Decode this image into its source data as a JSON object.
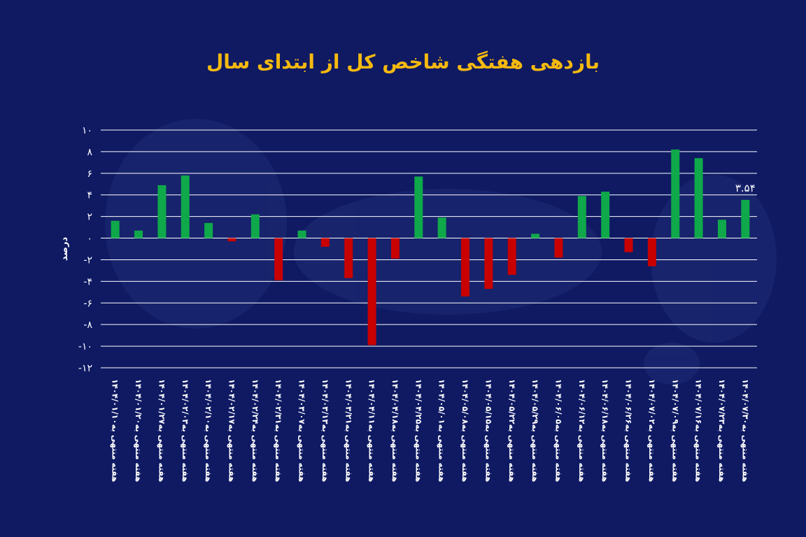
{
  "chart_data": {
    "type": "bar",
    "title": "بازدهی هفتگی شاخص کل از ابتدای سال",
    "xlabel": "",
    "ylabel": "درصد",
    "ylim": [
      -12,
      10
    ],
    "yticks": [
      10,
      8,
      6,
      4,
      2,
      0,
      -2,
      -4,
      -6,
      -8,
      -10,
      -12
    ],
    "ytick_labels": [
      "۱۰",
      "۸",
      "۶",
      "۴",
      "۲",
      "۰",
      "-۲",
      "-۴",
      "-۶",
      "-۸",
      "-۱۰",
      "-۱۲"
    ],
    "grid": true,
    "legend": "none",
    "categories": [
      "هفته منتهی به۱۴۰۴/۰۱/۱۰",
      "هفته منتهی به۱۴۰۴/۰۱/۲۰",
      "هفته منتهی به۱۴۰۴/۰۱/۲۷",
      "هفته منتهی به۱۴۰۴/۰۲/۰۳",
      "هفته منتهی به۱۴۰۴/۰۲/۱۰",
      "هفته منتهی به۱۴۰۴/۰۲/۱۷",
      "هفته منتهی به۱۴۰۴/۰۲/۲۴",
      "هفته منتهی به۱۴۰۴/۰۲/۳۱",
      "هفته منتهی به۱۴۰۴/۰۳/۰۷",
      "هفته منتهی به۱۴۰۴/۰۳/۱۳",
      "هفته منتهی به۱۴۰۴/۰۳/۲۱",
      "هفته منتهی به۱۴۰۴/۰۴/۱۱",
      "هفته منتهی به۱۴۰۴/۰۴/۱۸",
      "هفته منتهی به۱۴۰۴/۰۴/۲۵",
      "هفته منتهی به۱۴۰۴/۰۵/۰۱",
      "هفته منتهی به۱۴۰۴/۰۵/۰۸",
      "هفته منتهی به۱۴۰۴/۰۵/۱۵",
      "هفته منتهی به۱۴۰۴/۰۵/۲۲",
      "هفته منتهی به۱۴۰۴/۰۵/۲۹",
      "هفته منتهی به۱۴۰۴/۰۶/۰۵",
      "هفته منتهی به۱۴۰۴/۰۶/۱۲",
      "هفته منتهی به۱۴۰۴/۰۶/۱۸",
      "هفته منتهی به۱۴۰۴/۰۶/۲۶",
      "هفته منتهی به۱۴۰۴/۰۷/۰۲",
      "هفته منتهی به۱۴۰۴/۰۷/۰۹",
      "هفته منتهی به۱۴۰۴/۰۷/۱۶",
      "هفته منتهی به۱۴۰۴/۰۷/۲۳",
      "هفته منتهی به۱۴۰۴/۰۷/۳۰"
    ],
    "values": [
      1.6,
      0.7,
      4.9,
      5.8,
      1.4,
      -0.3,
      2.2,
      -3.9,
      0.7,
      -0.8,
      -3.7,
      -9.9,
      -1.9,
      5.7,
      1.9,
      -5.4,
      -4.7,
      -3.4,
      0.4,
      -1.8,
      3.9,
      4.3,
      -1.3,
      -2.6,
      8.2,
      7.4,
      1.7,
      3.54
    ],
    "data_labels": [
      {
        "index": 27,
        "text": "۳.۵۴"
      }
    ],
    "colors": {
      "positive": "#0fa84a",
      "negative": "#c80000",
      "grid": "#ffffff",
      "background": "#0f1a63",
      "title": "#f5b90f"
    }
  }
}
